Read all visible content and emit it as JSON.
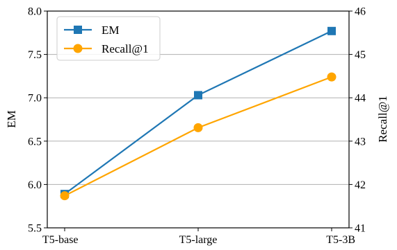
{
  "chart_data": {
    "type": "line",
    "categories": [
      "T5-base",
      "T5-large",
      "T5-3B"
    ],
    "series": [
      {
        "name": "EM",
        "axis": "left",
        "color": "#1f77b4",
        "marker": "square",
        "values": [
          5.89,
          7.03,
          7.77
        ]
      },
      {
        "name": "Recall@1",
        "axis": "right",
        "color": "#ffa500",
        "marker": "circle",
        "values": [
          41.74,
          43.31,
          44.48
        ]
      }
    ],
    "ylabel": "EM",
    "ylabel_right": "Recall@1",
    "ylim": [
      5.5,
      8.0
    ],
    "ylim_right": [
      41,
      46
    ],
    "yticks": [
      "5.5",
      "6.0",
      "6.5",
      "7.0",
      "7.5",
      "8.0"
    ],
    "yticks_right": [
      "41",
      "42",
      "43",
      "44",
      "45",
      "46"
    ],
    "grid": "horizontal",
    "legend_position": "top-left"
  }
}
